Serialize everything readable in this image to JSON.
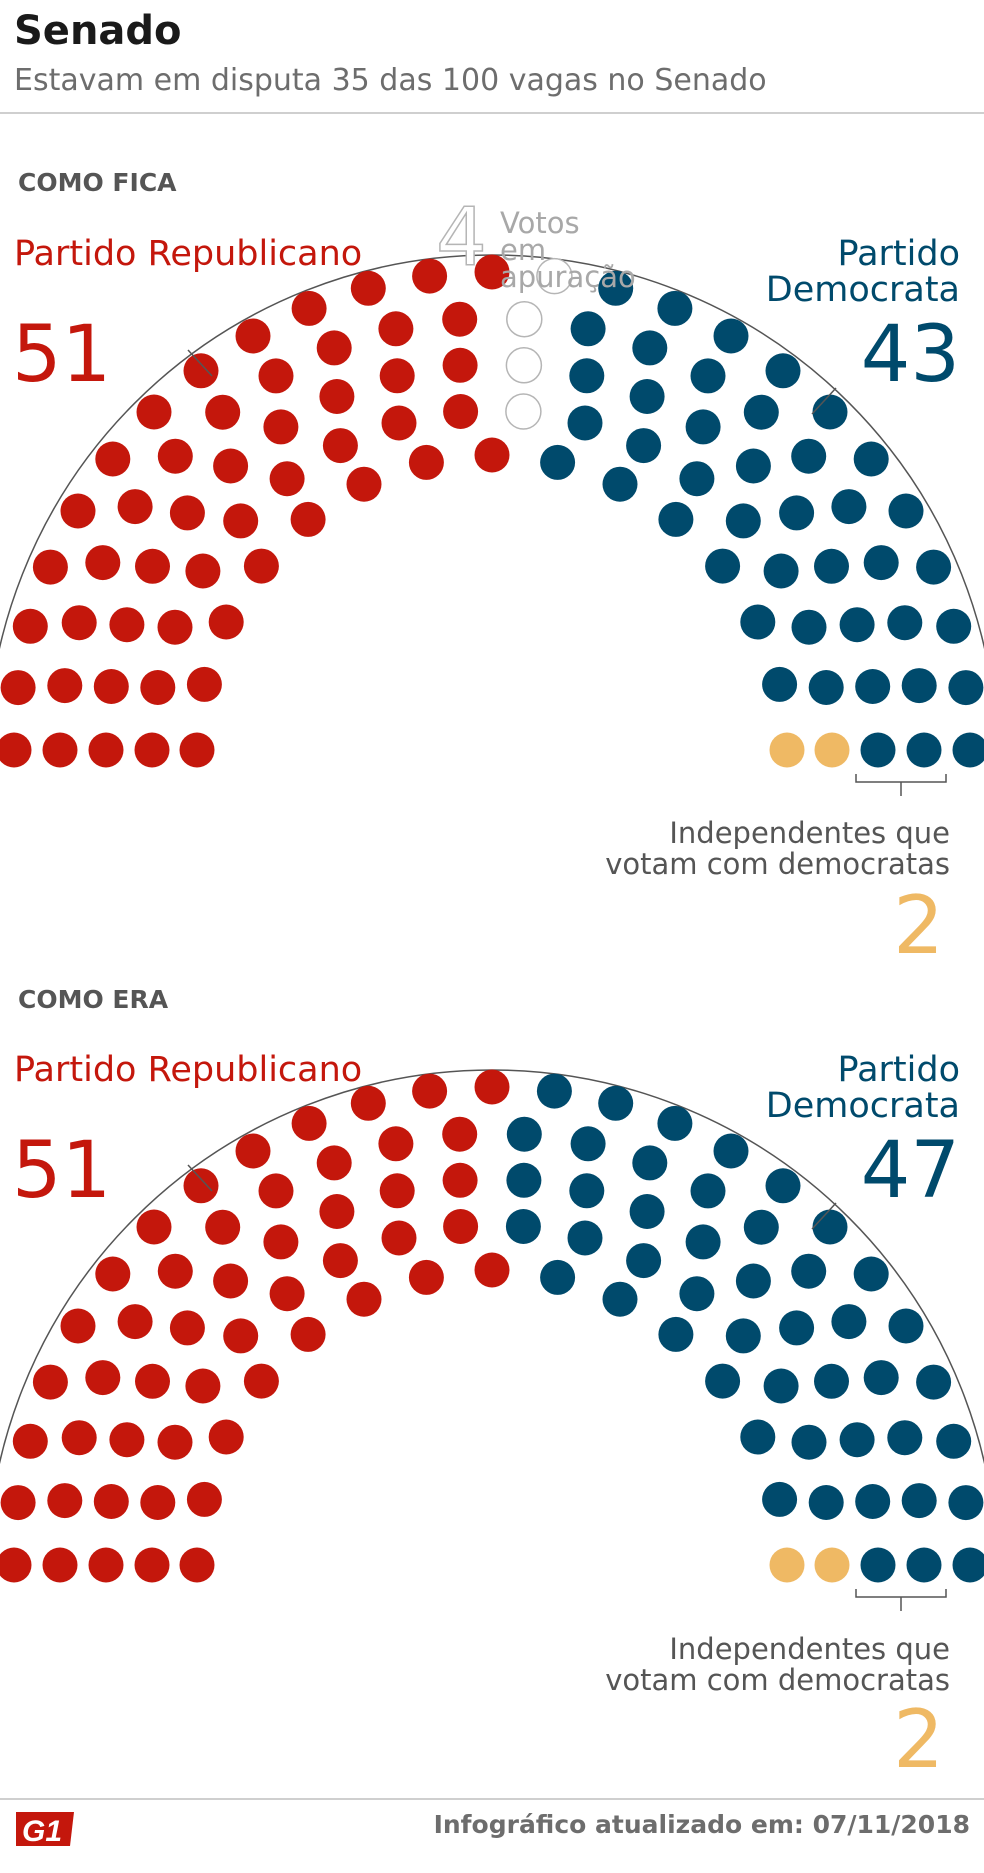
{
  "header": {
    "title": "Senado",
    "subtitle": "Estavam em disputa 35 das 100 vagas no Senado"
  },
  "sections": [
    {
      "label": "COMO FICA",
      "republican": {
        "name": "Partido Republicano",
        "count": "51"
      },
      "democrat": {
        "name": "Partido Democrata",
        "count": "43"
      },
      "pending": {
        "count": "4",
        "label": "Votos em apuração"
      },
      "independent": {
        "label": "Independentes que votam com democratas",
        "count": "2"
      }
    },
    {
      "label": "COMO ERA",
      "republican": {
        "name": "Partido Republicano",
        "count": "51"
      },
      "democrat": {
        "name": "Partido Democrata",
        "count": "47"
      },
      "independent": {
        "label": "Independentes que votam com democratas",
        "count": "2"
      }
    }
  ],
  "colors": {
    "republican": "#c4170c",
    "democrat": "#004a6c",
    "independent": "#efb964",
    "pending": "#b5b5b5"
  },
  "chart_data": [
    {
      "type": "parliament",
      "categories": [
        "Partido Republicano",
        "Votos em apuração",
        "Partido Democrata",
        "Independentes que votam com democratas"
      ],
      "values": [
        51,
        4,
        43,
        2
      ],
      "total": 100
    },
    {
      "type": "parliament",
      "categories": [
        "Partido Republicano",
        "Partido Democrata",
        "Independentes que votam com democratas"
      ],
      "values": [
        51,
        47,
        2
      ],
      "total": 100
    }
  ],
  "footer": {
    "logo": "G1",
    "updated": "Infográfico atualizado em: 07/11/2018"
  }
}
